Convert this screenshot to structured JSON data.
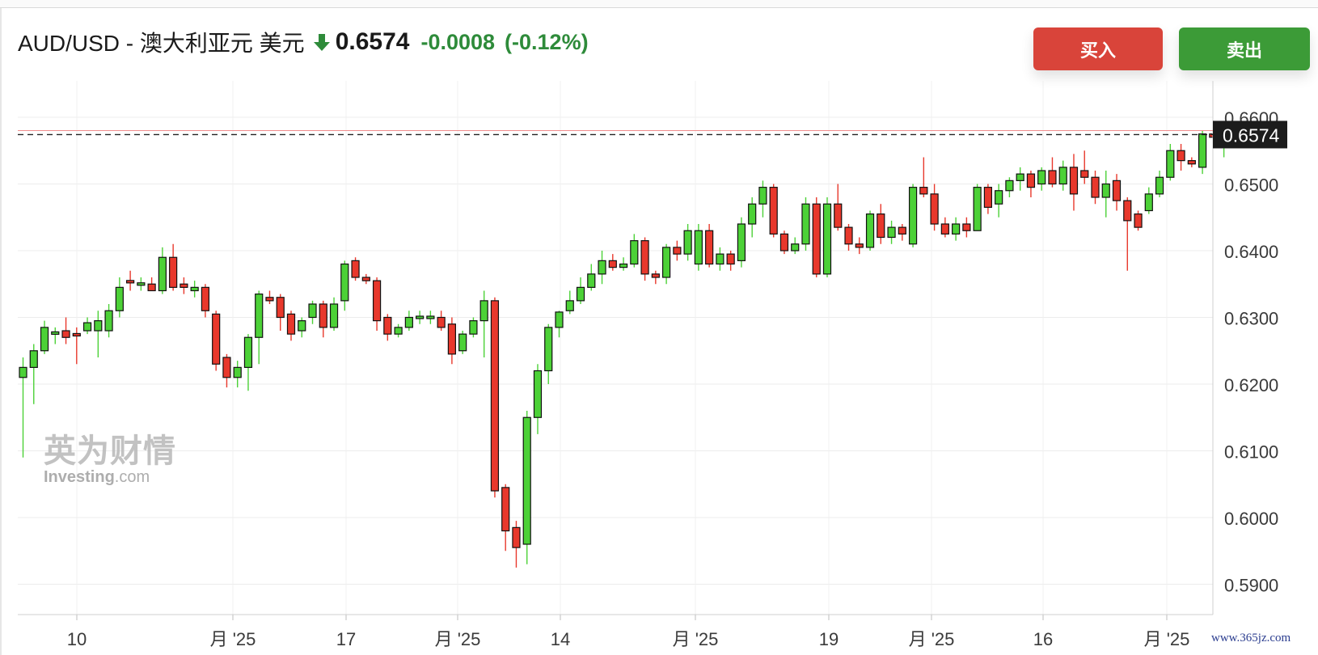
{
  "header": {
    "pair": "AUD/USD - 澳大利亚元 美元",
    "price": "0.6574",
    "change": "-0.0008",
    "change_pct": "(-0.12%)",
    "direction_icon": "down-arrow-icon"
  },
  "buttons": {
    "buy": "买入",
    "sell": "卖出"
  },
  "colors": {
    "up": "#4cd137",
    "down": "#e8382c",
    "change": "#2e8b3a",
    "buy": "#d9443a",
    "sell": "#3c9b37"
  },
  "current_price_label": "0.6574",
  "watermark": {
    "cn": "英为财情",
    "en": "Investing",
    "en_suffix": ".com"
  },
  "source": "www.365jz.com",
  "chart_data": {
    "type": "candlestick",
    "title": "",
    "y_ticks": [
      "0.6600",
      "0.6500",
      "0.6400",
      "0.6300",
      "0.6200",
      "0.6100",
      "0.6000",
      "0.5900"
    ],
    "x_ticks": [
      "10",
      "月 '25",
      "17",
      "月 '25",
      "14",
      "月 '25",
      "19",
      "月 '25",
      "16",
      "月 '25"
    ],
    "ylim": [
      0.5855,
      0.665
    ],
    "last_price": 0.6574,
    "grid": true,
    "candles": [
      [
        0.621,
        0.6225,
        0.624,
        0.609
      ],
      [
        0.6225,
        0.625,
        0.626,
        0.617
      ],
      [
        0.625,
        0.6285,
        0.6295,
        0.6245
      ],
      [
        0.6275,
        0.6278,
        0.6285,
        0.626
      ],
      [
        0.628,
        0.627,
        0.63,
        0.626
      ],
      [
        0.6275,
        0.6273,
        0.6285,
        0.623
      ],
      [
        0.628,
        0.6292,
        0.63,
        0.6275
      ],
      [
        0.628,
        0.6295,
        0.631,
        0.624
      ],
      [
        0.628,
        0.631,
        0.632,
        0.627
      ],
      [
        0.631,
        0.6345,
        0.636,
        0.63
      ],
      [
        0.6355,
        0.6352,
        0.637,
        0.634
      ],
      [
        0.635,
        0.635,
        0.636,
        0.634
      ],
      [
        0.635,
        0.634,
        0.636,
        0.634
      ],
      [
        0.634,
        0.639,
        0.6405,
        0.6335
      ],
      [
        0.639,
        0.6345,
        0.641,
        0.634
      ],
      [
        0.635,
        0.6345,
        0.636,
        0.6335
      ],
      [
        0.634,
        0.6345,
        0.6355,
        0.633
      ],
      [
        0.6345,
        0.631,
        0.635,
        0.63
      ],
      [
        0.6305,
        0.623,
        0.631,
        0.622
      ],
      [
        0.624,
        0.621,
        0.6245,
        0.6195
      ],
      [
        0.621,
        0.6225,
        0.6235,
        0.6195
      ],
      [
        0.6225,
        0.627,
        0.6275,
        0.619
      ],
      [
        0.627,
        0.6335,
        0.634,
        0.623
      ],
      [
        0.633,
        0.6325,
        0.634,
        0.632
      ],
      [
        0.633,
        0.63,
        0.6335,
        0.628
      ],
      [
        0.6305,
        0.6275,
        0.631,
        0.6265
      ],
      [
        0.628,
        0.6295,
        0.63,
        0.627
      ],
      [
        0.63,
        0.632,
        0.6325,
        0.629
      ],
      [
        0.632,
        0.6285,
        0.6325,
        0.627
      ],
      [
        0.6285,
        0.632,
        0.633,
        0.628
      ],
      [
        0.6325,
        0.638,
        0.6385,
        0.631
      ],
      [
        0.6385,
        0.636,
        0.639,
        0.6355
      ],
      [
        0.636,
        0.6355,
        0.6365,
        0.635
      ],
      [
        0.6355,
        0.6295,
        0.636,
        0.628
      ],
      [
        0.63,
        0.6275,
        0.6305,
        0.6265
      ],
      [
        0.6275,
        0.6285,
        0.629,
        0.627
      ],
      [
        0.6285,
        0.63,
        0.631,
        0.628
      ],
      [
        0.63,
        0.63,
        0.631,
        0.629
      ],
      [
        0.63,
        0.63,
        0.631,
        0.629
      ],
      [
        0.63,
        0.6285,
        0.631,
        0.628
      ],
      [
        0.629,
        0.6245,
        0.63,
        0.623
      ],
      [
        0.625,
        0.6275,
        0.628,
        0.6245
      ],
      [
        0.6275,
        0.6295,
        0.63,
        0.627
      ],
      [
        0.6295,
        0.6325,
        0.634,
        0.624
      ],
      [
        0.6325,
        0.604,
        0.633,
        0.603
      ],
      [
        0.6045,
        0.598,
        0.605,
        0.595
      ],
      [
        0.5985,
        0.5955,
        0.5995,
        0.5925
      ],
      [
        0.596,
        0.615,
        0.616,
        0.593
      ],
      [
        0.615,
        0.622,
        0.623,
        0.6125
      ],
      [
        0.622,
        0.6285,
        0.629,
        0.62
      ],
      [
        0.6285,
        0.6308,
        0.631,
        0.627
      ],
      [
        0.631,
        0.6325,
        0.634,
        0.6305
      ],
      [
        0.6325,
        0.6345,
        0.636,
        0.632
      ],
      [
        0.6345,
        0.6365,
        0.638,
        0.634
      ],
      [
        0.6365,
        0.6385,
        0.64,
        0.635
      ],
      [
        0.6385,
        0.6375,
        0.6395,
        0.637
      ],
      [
        0.6375,
        0.638,
        0.639,
        0.637
      ],
      [
        0.638,
        0.6415,
        0.6425,
        0.6375
      ],
      [
        0.6415,
        0.6365,
        0.642,
        0.6355
      ],
      [
        0.6365,
        0.636,
        0.637,
        0.635
      ],
      [
        0.636,
        0.6405,
        0.641,
        0.635
      ],
      [
        0.6405,
        0.6395,
        0.6415,
        0.6385
      ],
      [
        0.6395,
        0.643,
        0.644,
        0.6385
      ],
      [
        0.638,
        0.643,
        0.644,
        0.637
      ],
      [
        0.643,
        0.638,
        0.644,
        0.6375
      ],
      [
        0.638,
        0.6395,
        0.6405,
        0.637
      ],
      [
        0.6395,
        0.638,
        0.64,
        0.637
      ],
      [
        0.6385,
        0.644,
        0.645,
        0.6375
      ],
      [
        0.644,
        0.647,
        0.648,
        0.642
      ],
      [
        0.647,
        0.6495,
        0.6505,
        0.645
      ],
      [
        0.6495,
        0.6425,
        0.65,
        0.642
      ],
      [
        0.6425,
        0.64,
        0.643,
        0.6395
      ],
      [
        0.64,
        0.641,
        0.642,
        0.6395
      ],
      [
        0.641,
        0.647,
        0.648,
        0.64
      ],
      [
        0.647,
        0.6365,
        0.648,
        0.636
      ],
      [
        0.6365,
        0.647,
        0.648,
        0.636
      ],
      [
        0.647,
        0.6435,
        0.65,
        0.643
      ],
      [
        0.6435,
        0.641,
        0.644,
        0.64
      ],
      [
        0.641,
        0.6405,
        0.642,
        0.6395
      ],
      [
        0.6405,
        0.6455,
        0.646,
        0.64
      ],
      [
        0.6455,
        0.642,
        0.647,
        0.641
      ],
      [
        0.642,
        0.6435,
        0.6445,
        0.641
      ],
      [
        0.6435,
        0.6425,
        0.644,
        0.6415
      ],
      [
        0.641,
        0.6495,
        0.65,
        0.6405
      ],
      [
        0.6495,
        0.6485,
        0.654,
        0.648
      ],
      [
        0.6485,
        0.644,
        0.65,
        0.643
      ],
      [
        0.644,
        0.6425,
        0.645,
        0.642
      ],
      [
        0.6425,
        0.644,
        0.645,
        0.6415
      ],
      [
        0.644,
        0.643,
        0.645,
        0.642
      ],
      [
        0.643,
        0.6495,
        0.65,
        0.643
      ],
      [
        0.6495,
        0.6465,
        0.65,
        0.6455
      ],
      [
        0.647,
        0.649,
        0.65,
        0.645
      ],
      [
        0.649,
        0.6505,
        0.651,
        0.648
      ],
      [
        0.6505,
        0.6515,
        0.6525,
        0.649
      ],
      [
        0.6515,
        0.6495,
        0.652,
        0.648
      ],
      [
        0.65,
        0.652,
        0.6525,
        0.649
      ],
      [
        0.652,
        0.65,
        0.654,
        0.6495
      ],
      [
        0.65,
        0.6525,
        0.6535,
        0.649
      ],
      [
        0.6525,
        0.6485,
        0.6545,
        0.646
      ],
      [
        0.652,
        0.651,
        0.655,
        0.65
      ],
      [
        0.651,
        0.648,
        0.652,
        0.647
      ],
      [
        0.648,
        0.65,
        0.652,
        0.645
      ],
      [
        0.6505,
        0.6475,
        0.6515,
        0.646
      ],
      [
        0.6475,
        0.6445,
        0.648,
        0.637
      ],
      [
        0.6455,
        0.6435,
        0.646,
        0.643
      ],
      [
        0.646,
        0.6485,
        0.6495,
        0.6455
      ],
      [
        0.6485,
        0.651,
        0.652,
        0.648
      ],
      [
        0.651,
        0.655,
        0.656,
        0.6505
      ],
      [
        0.655,
        0.6535,
        0.656,
        0.652
      ],
      [
        0.6535,
        0.653,
        0.654,
        0.6525
      ],
      [
        0.6525,
        0.6575,
        0.658,
        0.6515
      ],
      [
        0.6575,
        0.657,
        0.6585,
        0.656
      ],
      [
        0.6575,
        0.6575,
        0.6585,
        0.654
      ],
      [
        0.6575,
        0.658,
        0.6585,
        0.6565
      ],
      [
        0.658,
        0.6574,
        0.6585,
        0.6565
      ]
    ]
  }
}
